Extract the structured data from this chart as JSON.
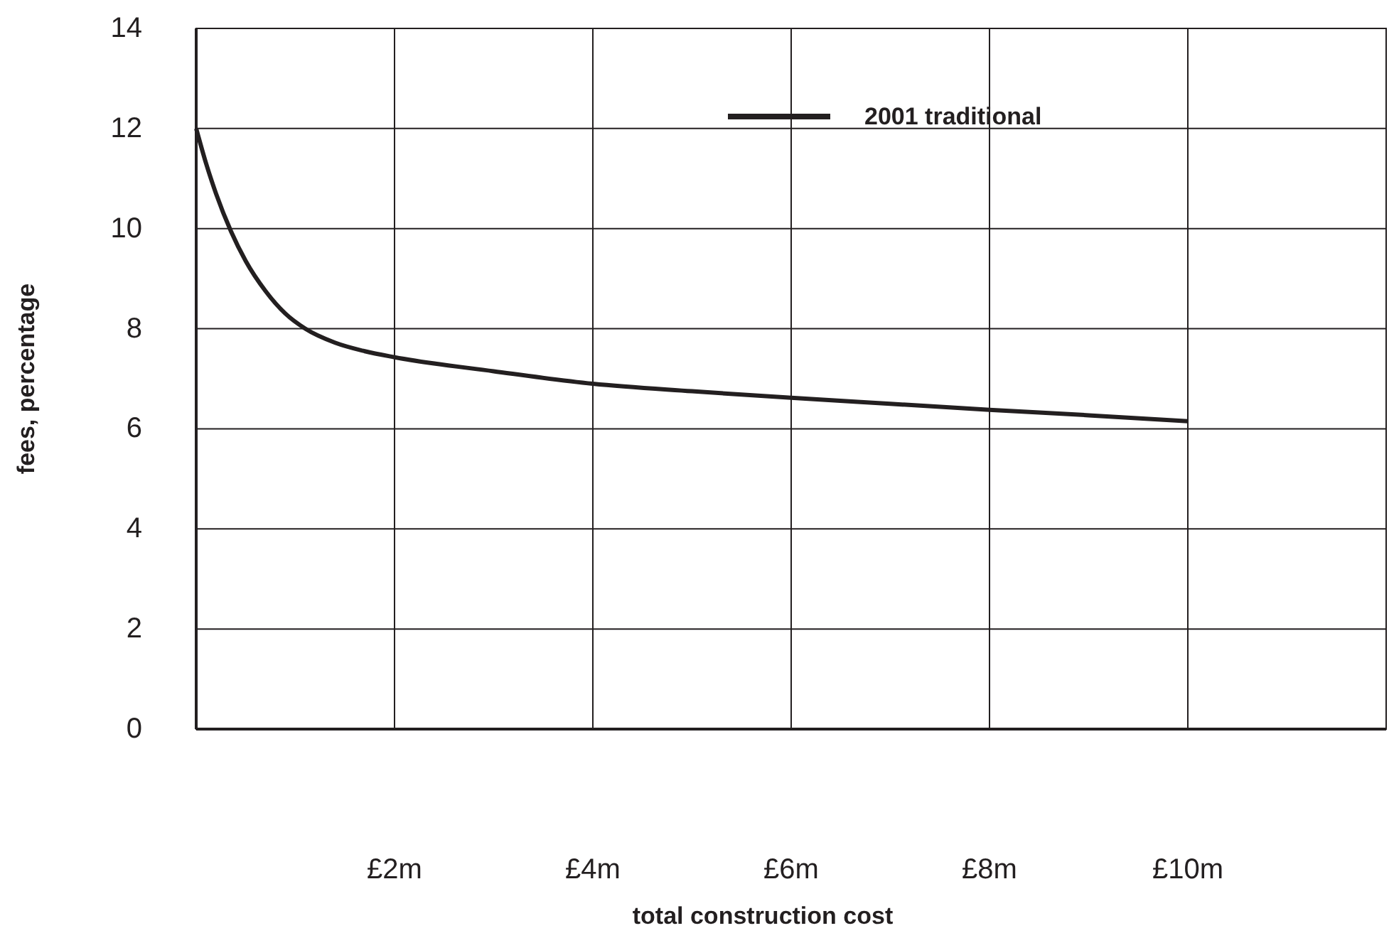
{
  "chart_data": {
    "type": "line",
    "xlabel": "total construction cost",
    "ylabel": "fees, percentage",
    "xlim": [
      0,
      12
    ],
    "xticks": [
      {
        "value": 2,
        "label": "£2m"
      },
      {
        "value": 4,
        "label": "£4m"
      },
      {
        "value": 6,
        "label": "£6m"
      },
      {
        "value": 8,
        "label": "£8m"
      },
      {
        "value": 10,
        "label": "£10m"
      }
    ],
    "ylim": [
      0,
      14
    ],
    "yticks": [
      0,
      2,
      4,
      6,
      8,
      10,
      12,
      14
    ],
    "grid": true,
    "legend": "top right",
    "line_style": "solid",
    "marker": "none",
    "series": [
      {
        "name": "2001 traditional",
        "color": "#231f20",
        "x": [
          0,
          0.1,
          0.2,
          0.35,
          0.5,
          0.7,
          0.9,
          1.1,
          1.4,
          1.7,
          2,
          3,
          4,
          5,
          6,
          7,
          8,
          9,
          10
        ],
        "values": [
          12,
          11.3,
          10.7,
          9.95,
          9.35,
          8.75,
          8.3,
          8.0,
          7.72,
          7.55,
          7.43,
          7.15,
          6.9,
          6.75,
          6.62,
          6.5,
          6.38,
          6.27,
          6.15
        ]
      }
    ]
  }
}
